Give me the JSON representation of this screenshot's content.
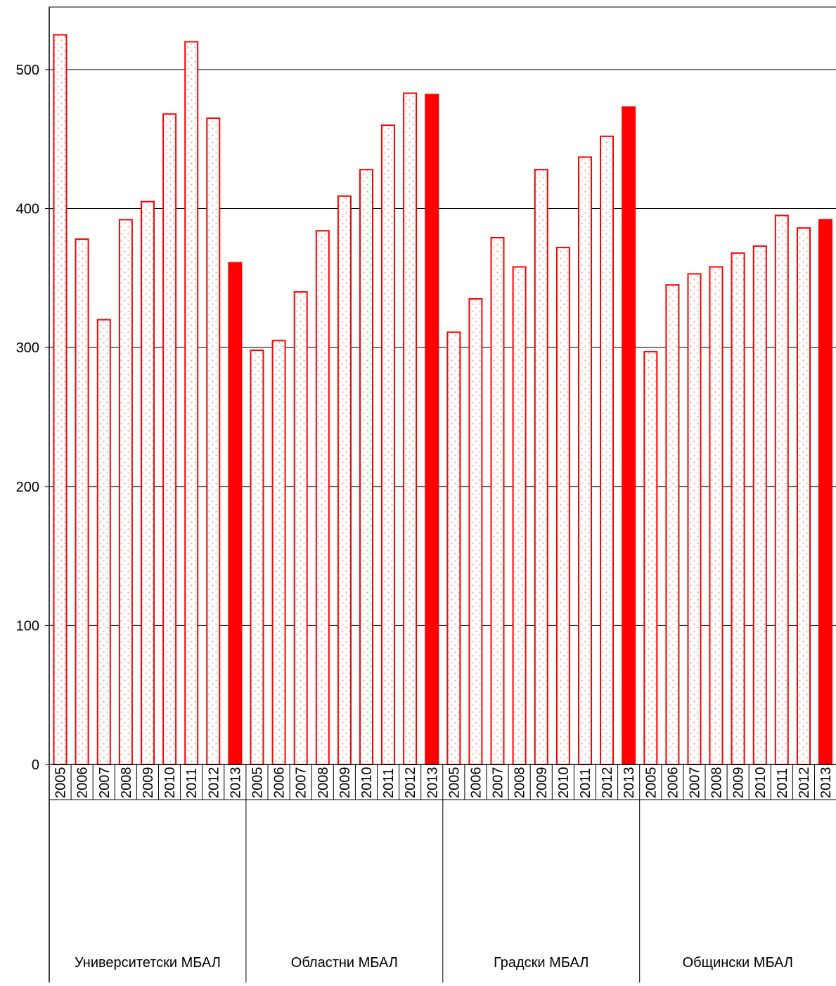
{
  "chart_data": {
    "type": "bar",
    "title": "",
    "xlabel": "",
    "ylabel": "",
    "ylim": [
      0,
      545
    ],
    "yticks": [
      0,
      100,
      200,
      300,
      400,
      500
    ],
    "grid": true,
    "legend": "none",
    "colors": {
      "bar": "#ff0000",
      "dots": "#ff8c8c",
      "axis": "#000000",
      "grid": "#000000"
    },
    "groups": [
      {
        "name": "Университетски МБАЛ",
        "categories": [
          "2005",
          "2006",
          "2007",
          "2008",
          "2009",
          "2010",
          "2011",
          "2012",
          "2013"
        ],
        "values": [
          525,
          378,
          320,
          392,
          405,
          468,
          520,
          465,
          361
        ]
      },
      {
        "name": "Областни МБАЛ",
        "categories": [
          "2005",
          "2006",
          "2007",
          "2008",
          "2009",
          "2010",
          "2011",
          "2012",
          "2013"
        ],
        "values": [
          298,
          305,
          340,
          384,
          409,
          428,
          460,
          483,
          482
        ]
      },
      {
        "name": "Градски МБАЛ",
        "categories": [
          "2005",
          "2006",
          "2007",
          "2008",
          "2009",
          "2010",
          "2011",
          "2012",
          "2013"
        ],
        "values": [
          311,
          335,
          379,
          358,
          428,
          372,
          437,
          452,
          473
        ]
      },
      {
        "name": "Общински МБАЛ",
        "categories": [
          "2005",
          "2006",
          "2007",
          "2008",
          "2009",
          "2010",
          "2011",
          "2012",
          "2013"
        ],
        "values": [
          297,
          345,
          353,
          358,
          368,
          373,
          395,
          386,
          392
        ]
      }
    ],
    "highlight_category": "2013"
  }
}
